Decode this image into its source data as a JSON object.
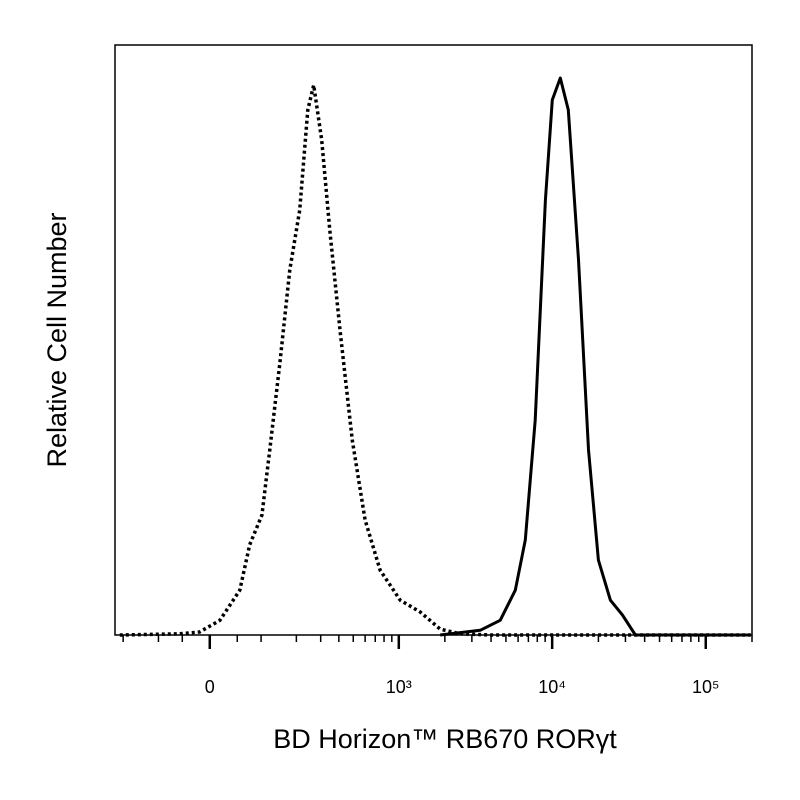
{
  "chart_data": {
    "type": "line",
    "x_label": "BD Horizon™ RB670 RORγt",
    "y_label": "Relative Cell Number",
    "xscale": "biexponential",
    "xlim": [
      -230,
      200000
    ],
    "ylim": [
      0,
      100
    ],
    "xticks": [
      0,
      {
        "value": 1000,
        "label": "10³"
      },
      {
        "value": 10000,
        "label": "10⁴"
      },
      {
        "value": 100000,
        "label": "10⁵"
      }
    ],
    "xminorticks": [
      -200,
      -100,
      -50,
      50,
      100,
      200,
      300,
      400,
      500,
      600,
      700,
      800,
      900,
      2000,
      3000,
      4000,
      5000,
      6000,
      7000,
      8000,
      9000,
      20000,
      30000,
      40000,
      50000,
      60000,
      70000,
      80000,
      90000,
      200000
    ],
    "series": [
      {
        "color": "#000000",
        "dash": "dotted",
        "x": [
          -212,
          -55,
          -18,
          18,
          55,
          75,
          102,
          121,
          149,
          178,
          212,
          243,
          268,
          305,
          347,
          407,
          492,
          600,
          754,
          1021,
          1380,
          1864,
          2516,
          3950,
          196000
        ],
        "values": [
          0,
          0.2,
          0.5,
          2.5,
          7.6,
          15.3,
          20.3,
          31.4,
          46.6,
          61.9,
          72.0,
          89.0,
          93.2,
          83.9,
          68.6,
          51.7,
          33.1,
          19.5,
          11.0,
          5.9,
          3.9,
          1.0,
          0.2,
          0,
          0
        ]
      },
      {
        "color": "#000000",
        "dash": "solid",
        "x": [
          1864,
          3400,
          4590,
          5750,
          6680,
          7760,
          9030,
          10020,
          11300,
          12740,
          14840,
          17240,
          19990,
          23940,
          28670,
          34830,
          196000
        ],
        "values": [
          0,
          0.8,
          2.5,
          7.6,
          16.1,
          36.4,
          73.7,
          90.7,
          94.4,
          89.0,
          63.6,
          31.4,
          12.7,
          5.9,
          3.4,
          0,
          0
        ]
      }
    ]
  }
}
